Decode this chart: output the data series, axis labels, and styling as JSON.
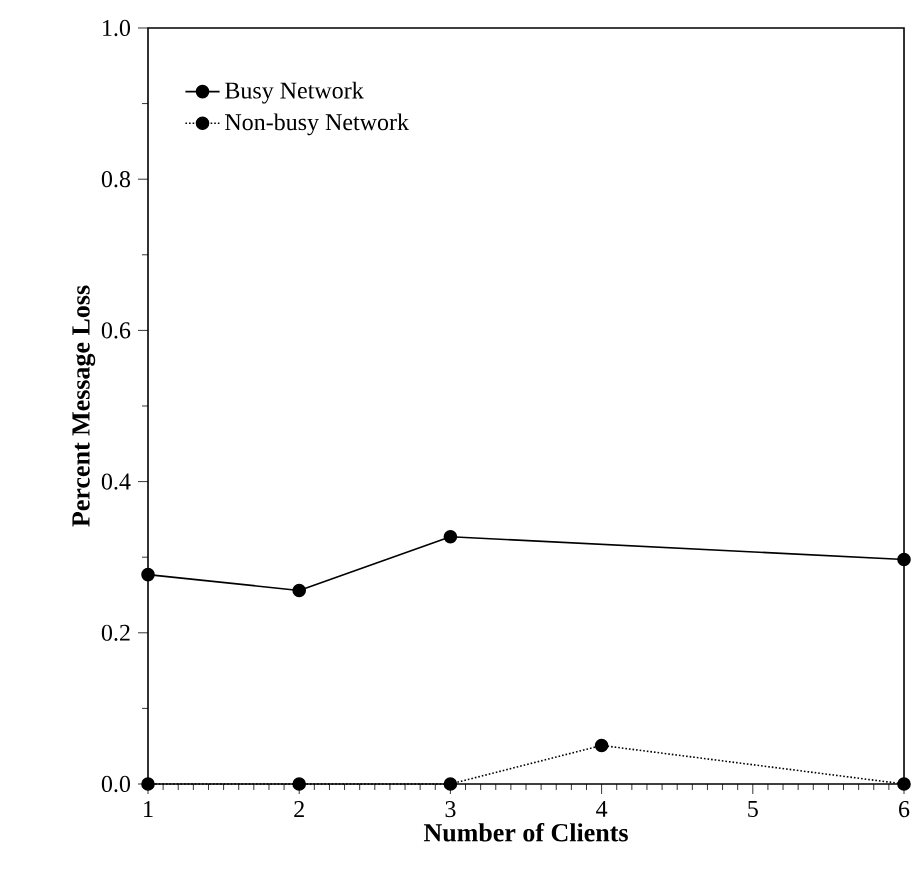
{
  "chart_data": {
    "type": "line",
    "xlabel": "Number of Clients",
    "ylabel": "Percent Message Loss",
    "xlim": [
      1,
      6
    ],
    "xticks": [
      1,
      2,
      3,
      4,
      5,
      6
    ],
    "ylim": [
      0,
      1
    ],
    "yticks": [
      {
        "value": 0,
        "label": "0.0"
      },
      {
        "value": 0.2,
        "label": "0.2"
      },
      {
        "value": 0.4,
        "label": "0.4"
      },
      {
        "value": 0.6,
        "label": "0.6"
      },
      {
        "value": 0.8,
        "label": "0.8"
      },
      {
        "value": 1.0,
        "label": "1.0"
      }
    ],
    "marker": "circle",
    "legend": "top left",
    "grid": false,
    "series": [
      {
        "name": "Busy Network",
        "color": "#000000",
        "line_style": "solid",
        "x": [
          1,
          2,
          3,
          6
        ],
        "values": [
          0.277,
          0.256,
          0.327,
          0.297
        ]
      },
      {
        "name": "Non-busy Network",
        "color": "#000000",
        "line_style": "dotted",
        "x": [
          1,
          2,
          3,
          4,
          6
        ],
        "values": [
          0,
          0,
          0,
          0.051,
          0
        ]
      }
    ]
  }
}
